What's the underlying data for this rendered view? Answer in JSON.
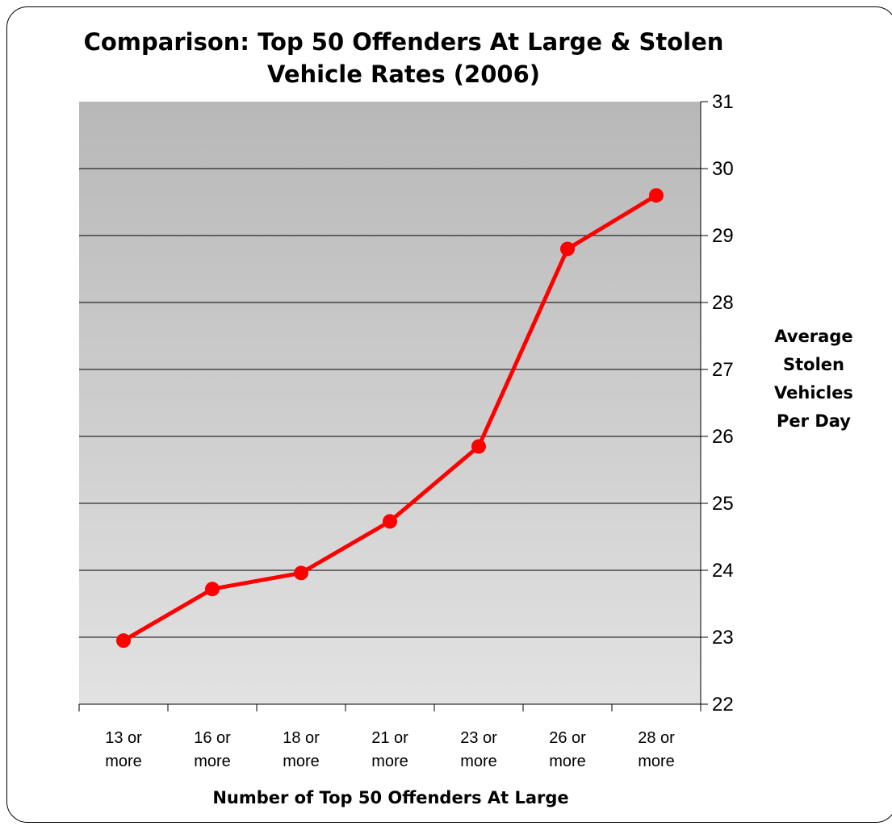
{
  "chart_data": {
    "type": "line",
    "title_lines": [
      "Comparison: Top 50 Offenders At Large & Stolen",
      "Vehicle Rates (2006)"
    ],
    "xlabel": "Number of Top 50 Offenders At Large",
    "ylabel_lines": [
      "Average",
      "Stolen",
      "Vehicles",
      "Per Day"
    ],
    "categories": [
      [
        "13 or",
        "more"
      ],
      [
        "16 or",
        "more"
      ],
      [
        "18 or",
        "more"
      ],
      [
        "21 or",
        "more"
      ],
      [
        "23 or",
        "more"
      ],
      [
        "26 or",
        "more"
      ],
      [
        "28 or",
        "more"
      ]
    ],
    "values": [
      22.95,
      23.72,
      23.96,
      24.73,
      25.85,
      28.8,
      29.6
    ],
    "ylim": [
      22,
      31
    ],
    "yticks": [
      22,
      23,
      24,
      25,
      26,
      27,
      28,
      29,
      30,
      31
    ],
    "y_axis_side": "right",
    "grid": true,
    "legend": false,
    "colors": {
      "line": "#ff0000",
      "marker": "#ff0000",
      "grid": "#000000"
    }
  }
}
